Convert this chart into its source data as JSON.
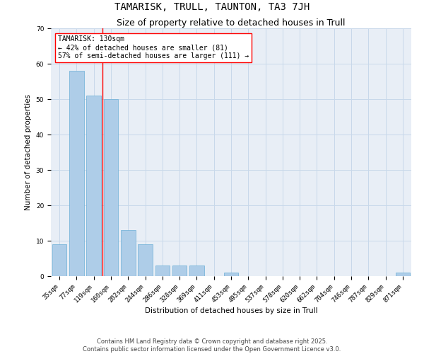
{
  "title": "TAMARISK, TRULL, TAUNTON, TA3 7JH",
  "subtitle": "Size of property relative to detached houses in Trull",
  "xlabel": "Distribution of detached houses by size in Trull",
  "ylabel": "Number of detached properties",
  "categories": [
    "35sqm",
    "77sqm",
    "119sqm",
    "160sqm",
    "202sqm",
    "244sqm",
    "286sqm",
    "328sqm",
    "369sqm",
    "411sqm",
    "453sqm",
    "495sqm",
    "537sqm",
    "578sqm",
    "620sqm",
    "662sqm",
    "704sqm",
    "746sqm",
    "787sqm",
    "829sqm",
    "871sqm"
  ],
  "values": [
    9,
    58,
    51,
    50,
    13,
    9,
    3,
    3,
    3,
    0,
    1,
    0,
    0,
    0,
    0,
    0,
    0,
    0,
    0,
    0,
    1
  ],
  "bar_color": "#aecde8",
  "bar_edge_color": "#6baed6",
  "grid_color": "#c8d8ea",
  "bg_color": "#e8eef6",
  "red_line_index": 2,
  "annotation_text": "TAMARISK: 130sqm\n← 42% of detached houses are smaller (81)\n57% of semi-detached houses are larger (111) →",
  "ylim": [
    0,
    70
  ],
  "yticks": [
    0,
    10,
    20,
    30,
    40,
    50,
    60,
    70
  ],
  "footer_line1": "Contains HM Land Registry data © Crown copyright and database right 2025.",
  "footer_line2": "Contains public sector information licensed under the Open Government Licence v3.0.",
  "title_fontsize": 10,
  "subtitle_fontsize": 9,
  "axis_label_fontsize": 7.5,
  "tick_fontsize": 6.5,
  "annotation_fontsize": 7,
  "footer_fontsize": 6
}
